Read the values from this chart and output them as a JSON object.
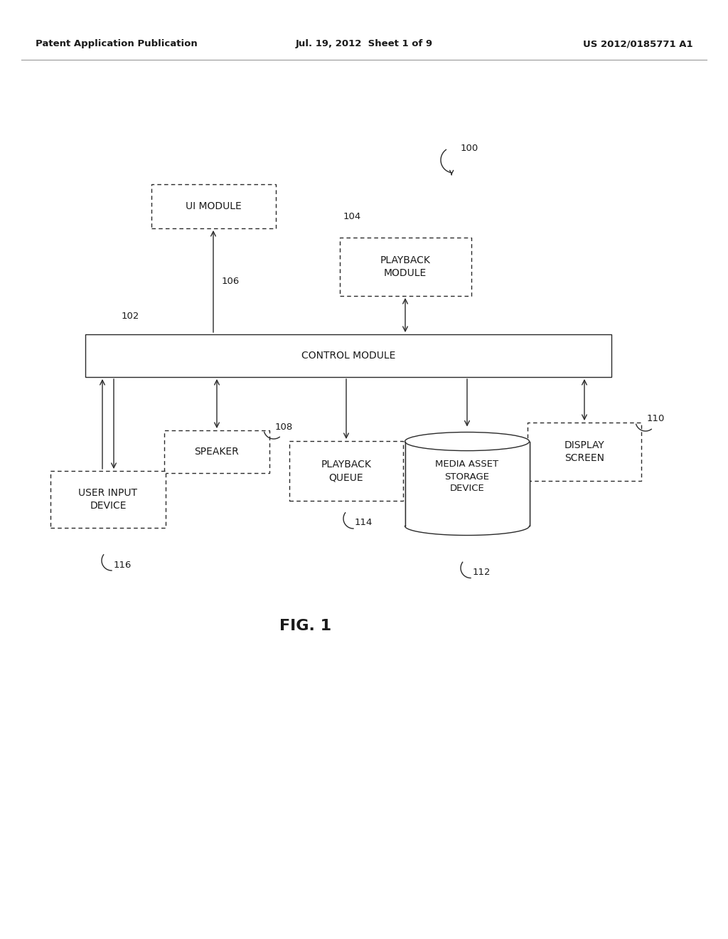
{
  "bg_color": "#ffffff",
  "text_color": "#1a1a1a",
  "header_left": "Patent Application Publication",
  "header_mid": "Jul. 19, 2012  Sheet 1 of 9",
  "header_right": "US 2012/0185771 A1",
  "fig_label": "FIG. 1",
  "ref_100": "100",
  "ref_102": "102",
  "ref_104": "104",
  "ref_106": "106",
  "ref_108": "108",
  "ref_110": "110",
  "ref_112": "112",
  "ref_114": "114",
  "ref_116": "116",
  "box_ui": "UI MODULE",
  "box_playback": "PLAYBACK\nMODULE",
  "box_control": "CONTROL MODULE",
  "box_speaker": "SPEAKER",
  "box_user_input": "USER INPUT\nDEVICE",
  "box_playback_queue": "PLAYBACK\nQUEUE",
  "box_display_screen": "DISPLAY\nSCREEN",
  "box_media_asset": "MEDIA ASSET\nSTORAGE\nDEVICE",
  "line_color": "#2a2a2a",
  "box_line_color": "#2a2a2a"
}
